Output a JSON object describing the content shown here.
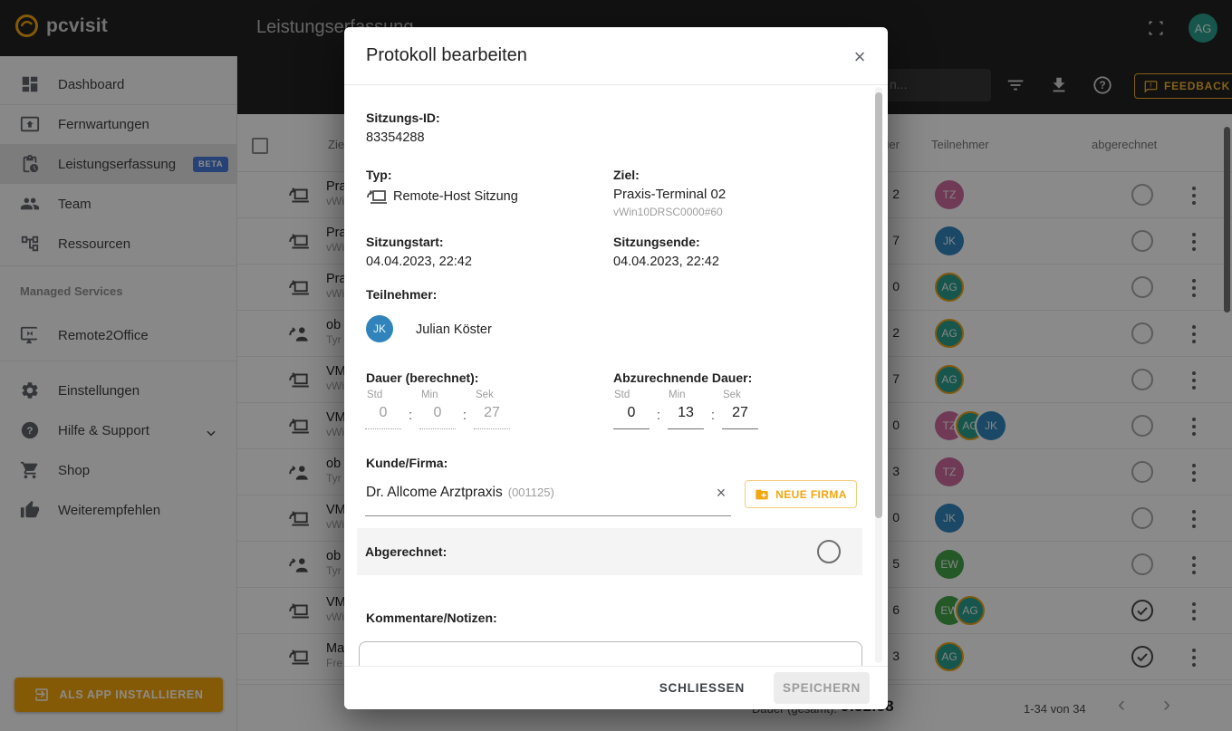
{
  "colors": {
    "accent": "#f2a50c",
    "beta_badge": "#4878d8",
    "avatar_ring": "#e8a21d",
    "avatars": {
      "TZ": "#cd6a9d",
      "JK": "#3084bb",
      "AG": "#2a9d8a",
      "EW": "#43a047"
    }
  },
  "topbar": {
    "brand": "pcvisit",
    "page_title": "Leistungserfassung",
    "user_avatar": "AG"
  },
  "toolbar": {
    "search_placeholder_fragment": "n...",
    "feedback_label": "FEEDBACK"
  },
  "sidebar": {
    "dashboard": "Dashboard",
    "fernwartungen": "Fernwartungen",
    "leistungserfassung": "Leistungserfassung",
    "beta": "BETA",
    "team": "Team",
    "ressourcen": "Ressourcen",
    "managed_services": "Managed Services",
    "remote2office": "Remote2Office",
    "einstellungen": "Einstellungen",
    "hilfe": "Hilfe & Support",
    "shop": "Shop",
    "weiterempfehlen": "Weiterempfehlen",
    "install": "ALS APP INSTALLIEREN"
  },
  "table": {
    "columns": {
      "ziel": "Ziel",
      "dauer": "Dauer",
      "teilnehmer": "Teilnehmer",
      "abgerechnet": "abgerechnet"
    },
    "rows": [
      {
        "ziel": "Pra",
        "sub": "vWi",
        "icon": "laptop",
        "dauer": "2",
        "checked": false,
        "avatars": [
          {
            "initials": "TZ"
          }
        ]
      },
      {
        "ziel": "Pra",
        "sub": "vWi",
        "icon": "laptop",
        "dauer": "7",
        "checked": false,
        "avatars": [
          {
            "initials": "JK"
          }
        ]
      },
      {
        "ziel": "Pra",
        "sub": "vWi",
        "icon": "laptop",
        "dauer": "0",
        "checked": false,
        "avatars": [
          {
            "initials": "AG",
            "ring": true
          }
        ]
      },
      {
        "ziel": "ob",
        "sub": "Tyr",
        "icon": "person",
        "dauer": "2",
        "checked": false,
        "avatars": [
          {
            "initials": "AG",
            "ring": true
          }
        ]
      },
      {
        "ziel": "VM",
        "sub": "vWi",
        "icon": "laptop",
        "dauer": "7",
        "checked": false,
        "avatars": [
          {
            "initials": "AG",
            "ring": true
          }
        ]
      },
      {
        "ziel": "VM",
        "sub": "vWi",
        "icon": "laptop",
        "dauer": "0",
        "checked": false,
        "avatars": [
          {
            "initials": "TZ"
          },
          {
            "initials": "AG",
            "ring": true
          },
          {
            "initials": "JK"
          }
        ]
      },
      {
        "ziel": "ob",
        "sub": "Tyr",
        "icon": "person",
        "dauer": "3",
        "checked": false,
        "avatars": [
          {
            "initials": "TZ"
          }
        ]
      },
      {
        "ziel": "VM",
        "sub": "vWi",
        "icon": "laptop",
        "dauer": "0",
        "checked": false,
        "avatars": [
          {
            "initials": "JK"
          }
        ]
      },
      {
        "ziel": "ob",
        "sub": "Tyr",
        "icon": "person",
        "dauer": "5",
        "checked": false,
        "avatars": [
          {
            "initials": "EW"
          }
        ]
      },
      {
        "ziel": "VM",
        "sub": "vWi",
        "icon": "laptop",
        "dauer": "6",
        "checked": true,
        "avatars": [
          {
            "initials": "EW"
          },
          {
            "initials": "AG",
            "ring": true
          }
        ]
      },
      {
        "ziel": "Ma",
        "sub": "Fre",
        "icon": "laptop",
        "dauer": "3",
        "checked": true,
        "avatars": [
          {
            "initials": "AG",
            "ring": true
          }
        ]
      }
    ]
  },
  "page_footer": {
    "dauer_gesamt_label": "Dauer (gesamt):",
    "dauer_gesamt_value": "9:52:38",
    "range": "1-34 von 34"
  },
  "modal": {
    "title": "Protokoll bearbeiten",
    "close": "×",
    "sitzungs_id_label": "Sitzungs-ID:",
    "sitzungs_id": "83354288",
    "typ_label": "Typ:",
    "typ_value": "Remote-Host Sitzung",
    "ziel_label": "Ziel:",
    "ziel_value": "Praxis-Terminal 02",
    "ziel_sub": "vWin10DRSC0000#60",
    "start_label": "Sitzungstart:",
    "start_value": "04.04.2023, 22:42",
    "ende_label": "Sitzungsende:",
    "ende_value": "04.04.2023, 22:42",
    "teilnehmer_label": "Teilnehmer:",
    "teilnehmer_initials": "JK",
    "teilnehmer_name": "Julian Köster",
    "dauer_label": "Dauer (berechnet):",
    "abz_label": "Abzurechnende Dauer:",
    "std": "Std",
    "min": "Min",
    "sek": "Sek",
    "colon": ":",
    "dauer_values": [
      "0",
      "0",
      "27"
    ],
    "abz_values": [
      "0",
      "13",
      "27"
    ],
    "kunde_label": "Kunde/Firma:",
    "kunde_value": "Dr. Allcome Arztpraxis",
    "kunde_code": "(001125)",
    "clear": "×",
    "neue_firma": "NEUE FIRMA",
    "abgerechnet_label": "Abgerechnet:",
    "kommentare_label": "Kommentare/Notizen:",
    "schliessen": "SCHLIESSEN",
    "speichern": "SPEICHERN"
  }
}
